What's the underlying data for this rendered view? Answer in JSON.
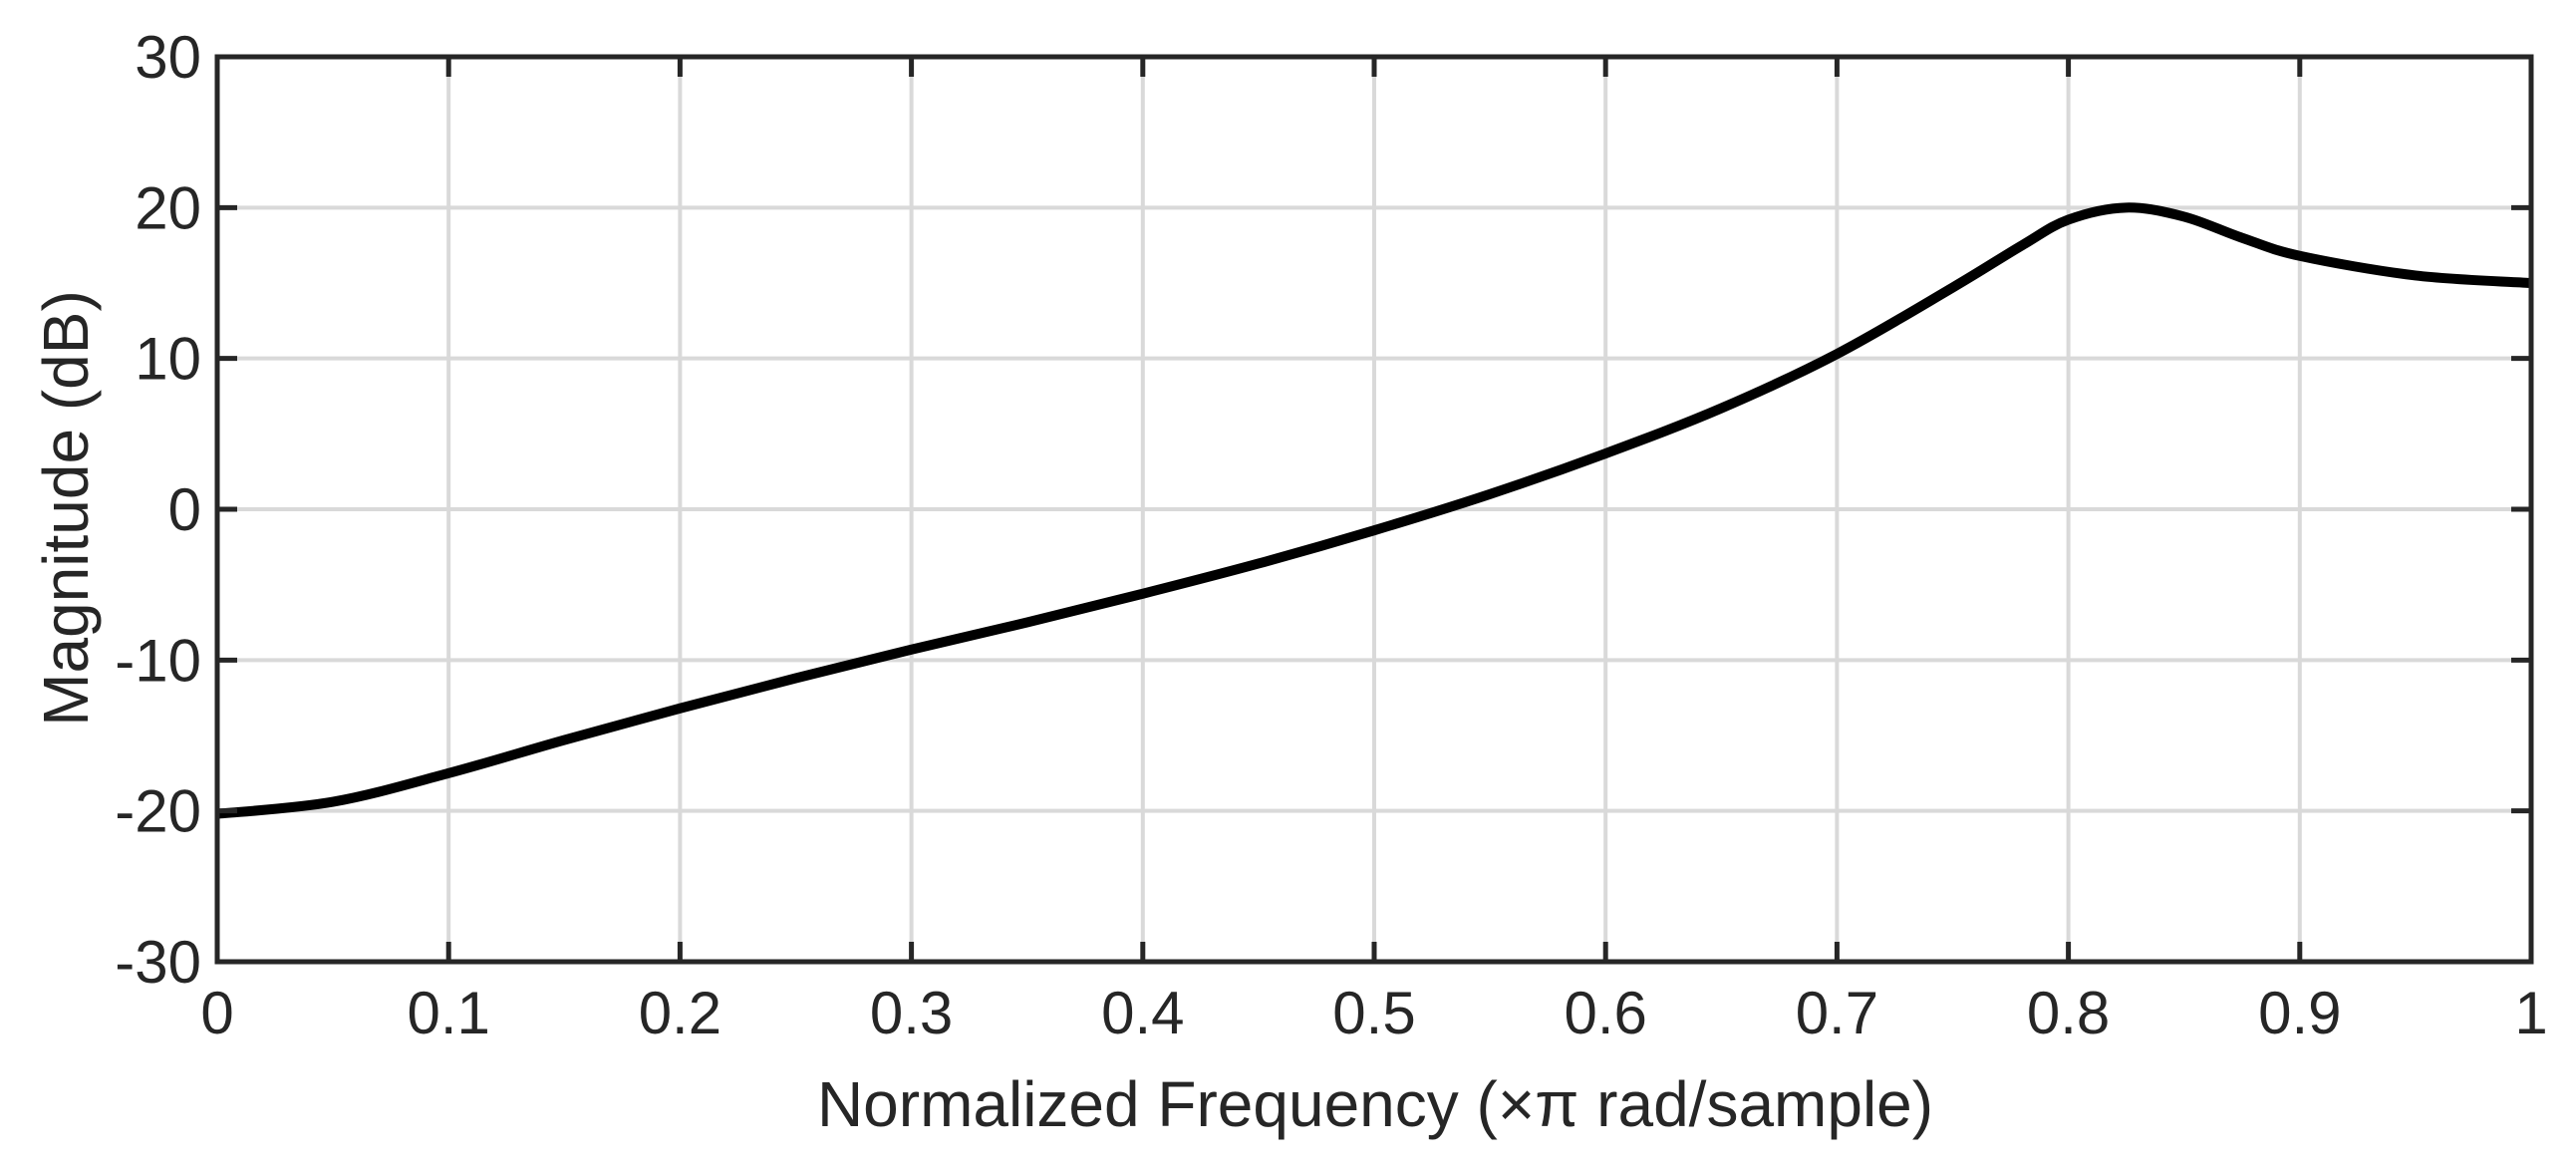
{
  "chart_data": {
    "type": "line",
    "title": "",
    "xlabel": "Normalized Frequency  (×π rad/sample)",
    "ylabel": "Magnitude (dB)",
    "xlim": [
      0,
      1
    ],
    "ylim": [
      -30,
      30
    ],
    "xticks": [
      0,
      0.1,
      0.2,
      0.3,
      0.4,
      0.5,
      0.6,
      0.7,
      0.8,
      0.9,
      1
    ],
    "xtick_labels": [
      "0",
      "0.1",
      "0.2",
      "0.3",
      "0.4",
      "0.5",
      "0.6",
      "0.7",
      "0.8",
      "0.9",
      "1"
    ],
    "yticks": [
      -30,
      -20,
      -10,
      0,
      10,
      20,
      30
    ],
    "ytick_labels": [
      "-30",
      "-20",
      "-10",
      "0",
      "10",
      "20",
      "30"
    ],
    "grid": true,
    "legend": "none",
    "colors": {
      "line": "#000000",
      "grid": "#d9d9d9",
      "axes": "#262626"
    },
    "series": [
      {
        "x": [
          0,
          0.05,
          0.1,
          0.15,
          0.2,
          0.25,
          0.3,
          0.35,
          0.4,
          0.45,
          0.5,
          0.55,
          0.6,
          0.65,
          0.7,
          0.75,
          0.78,
          0.8,
          0.825,
          0.85,
          0.875,
          0.9,
          0.95,
          1.0
        ],
        "y": [
          -20.2,
          -19.4,
          -17.5,
          -15.3,
          -13.2,
          -11.2,
          -9.3,
          -7.5,
          -5.6,
          -3.6,
          -1.4,
          1.0,
          3.7,
          6.7,
          10.3,
          14.7,
          17.5,
          19.2,
          20.0,
          19.4,
          18.0,
          16.8,
          15.5,
          15.0
        ]
      }
    ]
  }
}
